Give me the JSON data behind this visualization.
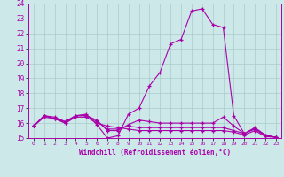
{
  "xlabel": "Windchill (Refroidissement éolien,°C)",
  "xlim": [
    -0.5,
    23.5
  ],
  "ylim": [
    15,
    24
  ],
  "yticks": [
    15,
    16,
    17,
    18,
    19,
    20,
    21,
    22,
    23,
    24
  ],
  "xticks": [
    0,
    1,
    2,
    3,
    4,
    5,
    6,
    7,
    8,
    9,
    10,
    11,
    12,
    13,
    14,
    15,
    16,
    17,
    18,
    19,
    20,
    21,
    22,
    23
  ],
  "bg_color": "#cce8e8",
  "grid_color": "#aacccc",
  "line_color": "#aa00aa",
  "lines": [
    {
      "x": [
        0,
        1,
        2,
        3,
        4,
        5,
        6,
        7,
        8,
        9,
        10,
        11,
        12,
        13,
        14,
        15,
        16,
        17,
        18,
        19,
        20,
        21,
        22,
        23
      ],
      "y": [
        15.8,
        16.5,
        16.4,
        16.1,
        16.5,
        16.6,
        15.9,
        15.0,
        15.15,
        16.6,
        17.0,
        18.5,
        19.4,
        21.3,
        21.6,
        23.5,
        23.65,
        22.6,
        22.4,
        16.5,
        15.3,
        15.7,
        15.2,
        15.05
      ]
    },
    {
      "x": [
        0,
        1,
        2,
        3,
        4,
        5,
        6,
        7,
        8,
        9,
        10,
        11,
        12,
        13,
        14,
        15,
        16,
        17,
        18,
        19,
        20,
        21,
        22,
        23
      ],
      "y": [
        15.8,
        16.5,
        16.3,
        16.1,
        16.5,
        16.5,
        16.2,
        15.5,
        15.5,
        15.9,
        16.2,
        16.1,
        16.0,
        16.0,
        16.0,
        16.0,
        16.0,
        16.0,
        16.4,
        15.8,
        15.3,
        15.65,
        15.2,
        15.05
      ]
    },
    {
      "x": [
        0,
        1,
        2,
        3,
        4,
        5,
        6,
        7,
        8,
        9,
        10,
        11,
        12,
        13,
        14,
        15,
        16,
        17,
        18,
        19,
        20,
        21,
        22,
        23
      ],
      "y": [
        15.8,
        16.5,
        16.3,
        16.0,
        16.5,
        16.5,
        16.1,
        15.6,
        15.6,
        15.8,
        15.7,
        15.7,
        15.7,
        15.7,
        15.7,
        15.7,
        15.7,
        15.7,
        15.7,
        15.5,
        15.3,
        15.6,
        15.15,
        15.05
      ]
    },
    {
      "x": [
        0,
        1,
        2,
        3,
        4,
        5,
        6,
        7,
        8,
        9,
        10,
        11,
        12,
        13,
        14,
        15,
        16,
        17,
        18,
        19,
        20,
        21,
        22,
        23
      ],
      "y": [
        15.8,
        16.4,
        16.3,
        16.0,
        16.4,
        16.4,
        16.0,
        15.8,
        15.7,
        15.6,
        15.5,
        15.5,
        15.5,
        15.5,
        15.5,
        15.5,
        15.5,
        15.5,
        15.5,
        15.4,
        15.2,
        15.5,
        15.1,
        15.05
      ]
    }
  ]
}
